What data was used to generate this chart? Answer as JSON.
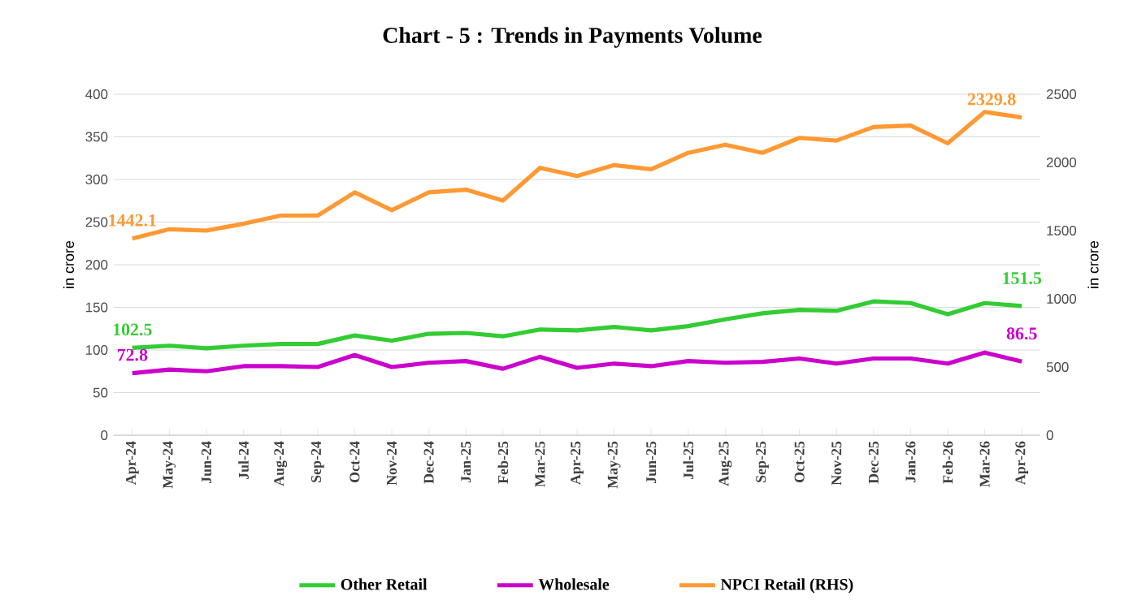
{
  "chart_data": {
    "type": "line",
    "title": "Chart - 5 : Trends in Payments Volume",
    "categories": [
      "Apr-24",
      "May-24",
      "Jun-24",
      "Jul-24",
      "Aug-24",
      "Sep-24",
      "Oct-24",
      "Nov-24",
      "Dec-24",
      "Jan-25",
      "Feb-25",
      "Mar-25",
      "Apr-25",
      "May-25",
      "Jun-25",
      "Jul-25",
      "Aug-25",
      "Sep-25",
      "Oct-25",
      "Nov-25",
      "Dec-25",
      "Jan-26",
      "Feb-26",
      "Mar-26",
      "Apr-26"
    ],
    "series": [
      {
        "name": "Other Retail",
        "color": "#33cc33",
        "values": [
          102.5,
          105,
          102,
          105,
          107,
          107,
          117,
          111,
          119,
          120,
          116,
          124,
          123,
          127,
          123,
          128,
          136,
          143,
          147,
          146,
          157,
          155,
          142,
          155,
          151.5
        ],
        "value_labels": [
          "102.5",
          null,
          null,
          null,
          null,
          null,
          null,
          null,
          null,
          null,
          null,
          null,
          null,
          null,
          null,
          null,
          null,
          null,
          null,
          null,
          null,
          null,
          null,
          null,
          "151.5"
        ]
      },
      {
        "name": "Wholesale",
        "color": "#cc00cc",
        "values": [
          72.8,
          77,
          75,
          81,
          81,
          80,
          94,
          80,
          85,
          87,
          78,
          92,
          79,
          84,
          81,
          87,
          85,
          86,
          90,
          84,
          90,
          90,
          84,
          97,
          86.5
        ],
        "value_labels": [
          "72.8",
          null,
          null,
          null,
          null,
          null,
          null,
          null,
          null,
          null,
          null,
          null,
          null,
          null,
          null,
          null,
          null,
          null,
          null,
          null,
          null,
          null,
          null,
          null,
          "86.5"
        ]
      },
      {
        "name": "NPCI Retail  (RHS)",
        "color": "#ff9933",
        "axis": "y2",
        "values": [
          1442.1,
          1510,
          1500,
          1550,
          1610,
          1610,
          1780,
          1650,
          1780,
          1800,
          1720,
          1960,
          1900,
          1980,
          1950,
          2070,
          2130,
          2070,
          2180,
          2160,
          2260,
          2270,
          2140,
          2370,
          2329.8
        ],
        "value_labels": [
          "1442.1",
          null,
          null,
          null,
          null,
          null,
          null,
          null,
          null,
          null,
          null,
          null,
          null,
          null,
          null,
          null,
          null,
          null,
          null,
          null,
          null,
          null,
          null,
          null,
          "2329.8"
        ]
      }
    ],
    "ylabel": "in crore",
    "y2label": "in crore",
    "ylim": [
      0,
      400
    ],
    "yticks": [
      0,
      50,
      100,
      150,
      200,
      250,
      300,
      350,
      400
    ],
    "y2lim": [
      0,
      2500
    ],
    "y2ticks": [
      0,
      500,
      1000,
      1500,
      2000,
      2500
    ],
    "grid": "y",
    "legend": "bottom",
    "marker": "none",
    "line_style": "solid"
  }
}
